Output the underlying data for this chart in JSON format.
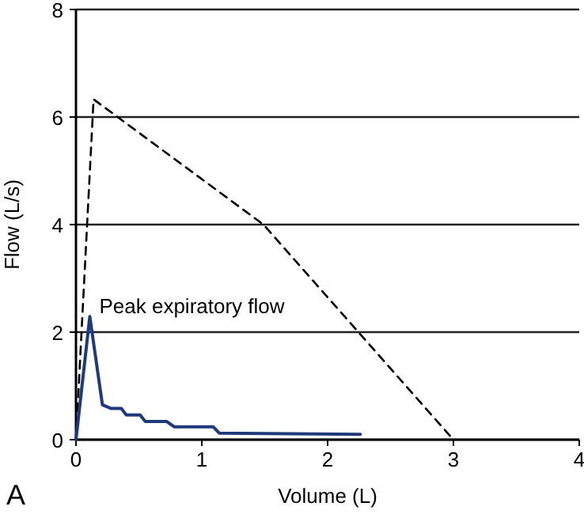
{
  "chart_data": {
    "type": "line",
    "xlabel": "Volume (L)",
    "ylabel": "Flow (L/s)",
    "xlim": [
      0,
      4
    ],
    "xticks": [
      0,
      1,
      2,
      3,
      4
    ],
    "ylim": [
      0,
      8
    ],
    "yticks": [
      0,
      2,
      4,
      6,
      8
    ],
    "grid": "y",
    "marker": "none",
    "series": [
      {
        "color": "#000000",
        "line_style": "dashed",
        "x": [
          0,
          0.14,
          1.49,
          3
        ],
        "values": [
          0,
          6.33,
          4.0,
          0
        ]
      },
      {
        "color": "#1f3a7a",
        "line_style": "solid",
        "x": [
          0,
          0.11,
          0.21,
          0.28,
          0.36,
          0.4,
          0.51,
          0.55,
          0.72,
          0.78,
          1.09,
          1.14,
          2.26
        ],
        "values": [
          0,
          2.29,
          0.65,
          0.58,
          0.58,
          0.46,
          0.46,
          0.34,
          0.34,
          0.24,
          0.24,
          0.12,
          0.1
        ]
      }
    ],
    "annotations": [
      {
        "text": "Peak expiratory flow",
        "x": 0.11,
        "y": 2.29
      },
      "A"
    ]
  }
}
